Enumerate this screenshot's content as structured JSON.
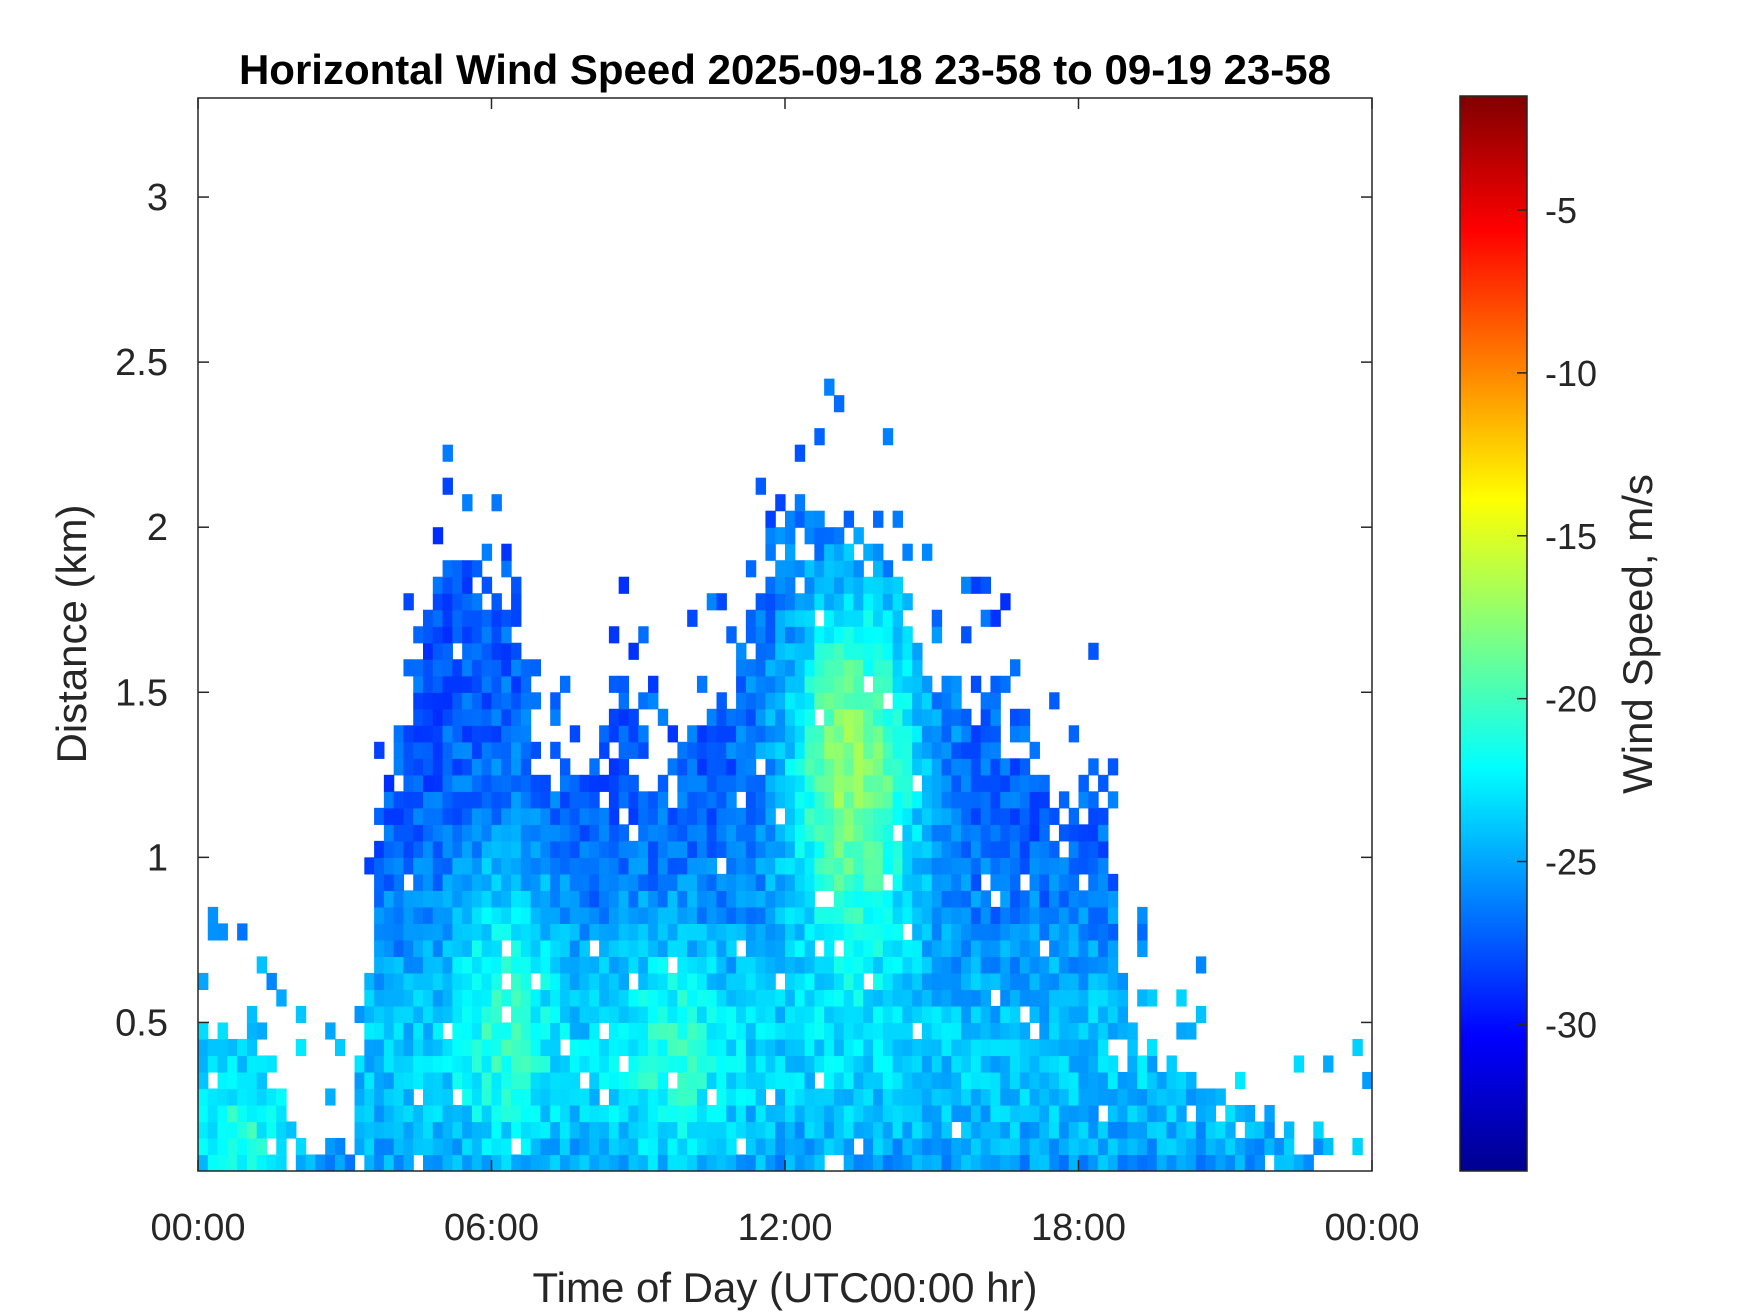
{
  "chart_data": {
    "type": "heatmap",
    "title": "Horizontal Wind Speed 2025-09-18 23-58 to 09-19 23-58",
    "xlabel": "Time of Day (UTC00:00 hr)",
    "ylabel": "Distance (km)",
    "colorbar_label": "Wind Speed, m/s",
    "colormap": "jet",
    "x_ticks": [
      {
        "hour": 0,
        "label": "00:00"
      },
      {
        "hour": 6,
        "label": "06:00"
      },
      {
        "hour": 12,
        "label": "12:00"
      },
      {
        "hour": 18,
        "label": "18:00"
      },
      {
        "hour": 24,
        "label": "00:00"
      }
    ],
    "y_ticks": [
      {
        "km": 0.5,
        "label": "0.5"
      },
      {
        "km": 1,
        "label": "1"
      },
      {
        "km": 1.5,
        "label": "1.5"
      },
      {
        "km": 2,
        "label": "2"
      },
      {
        "km": 2.5,
        "label": "2.5"
      },
      {
        "km": 3,
        "label": "3"
      }
    ],
    "colorbar_ticks": [
      {
        "value": -5,
        "label": "-5"
      },
      {
        "value": -10,
        "label": "-10"
      },
      {
        "value": -15,
        "label": "-15"
      },
      {
        "value": -20,
        "label": "-20"
      },
      {
        "value": -25,
        "label": "-25"
      },
      {
        "value": -30,
        "label": "-30"
      }
    ],
    "xlim": [
      0,
      24
    ],
    "ylim": [
      0.05,
      3.3
    ],
    "clim": [
      -34.5,
      -1.5
    ],
    "time_step_hours": 0.2,
    "height_step_km": 0.05,
    "echo_top_km_by_hour": [
      {
        "hour": 0.0,
        "top_km": 0.45
      },
      {
        "hour": 1.2,
        "top_km": 0.5
      },
      {
        "hour": 2.0,
        "top_km": 0.15
      },
      {
        "hour": 3.2,
        "top_km": 0.15
      },
      {
        "hour": 3.6,
        "top_km": 1.0
      },
      {
        "hour": 4.0,
        "top_km": 1.3
      },
      {
        "hour": 5.0,
        "top_km": 1.9
      },
      {
        "hour": 6.0,
        "top_km": 1.8
      },
      {
        "hour": 6.6,
        "top_km": 1.7
      },
      {
        "hour": 7.0,
        "top_km": 1.25
      },
      {
        "hour": 8.0,
        "top_km": 1.25
      },
      {
        "hour": 8.8,
        "top_km": 1.5
      },
      {
        "hour": 9.4,
        "top_km": 1.2
      },
      {
        "hour": 10.4,
        "top_km": 1.45
      },
      {
        "hour": 11.0,
        "top_km": 1.55
      },
      {
        "hour": 11.6,
        "top_km": 1.9
      },
      {
        "hour": 12.2,
        "top_km": 2.05
      },
      {
        "hour": 13.0,
        "top_km": 2.05
      },
      {
        "hour": 14.0,
        "top_km": 1.95
      },
      {
        "hour": 14.8,
        "top_km": 1.6
      },
      {
        "hour": 16.0,
        "top_km": 1.5
      },
      {
        "hour": 17.2,
        "top_km": 1.3
      },
      {
        "hour": 17.6,
        "top_km": 1.05
      },
      {
        "hour": 18.4,
        "top_km": 1.35
      },
      {
        "hour": 19.0,
        "top_km": 0.5
      },
      {
        "hour": 20.5,
        "top_km": 0.3
      },
      {
        "hour": 22.5,
        "top_km": 0.15
      },
      {
        "hour": 24.0,
        "top_km": 0.05
      }
    ],
    "notes_visible": "Maximum wind speed magnitude (green/yellow, about -15 to -17 m/s) near 12:00-14:00 at 1.0-1.6 km; most echoes are blue to cyan (-22 to -30 m/s)."
  }
}
